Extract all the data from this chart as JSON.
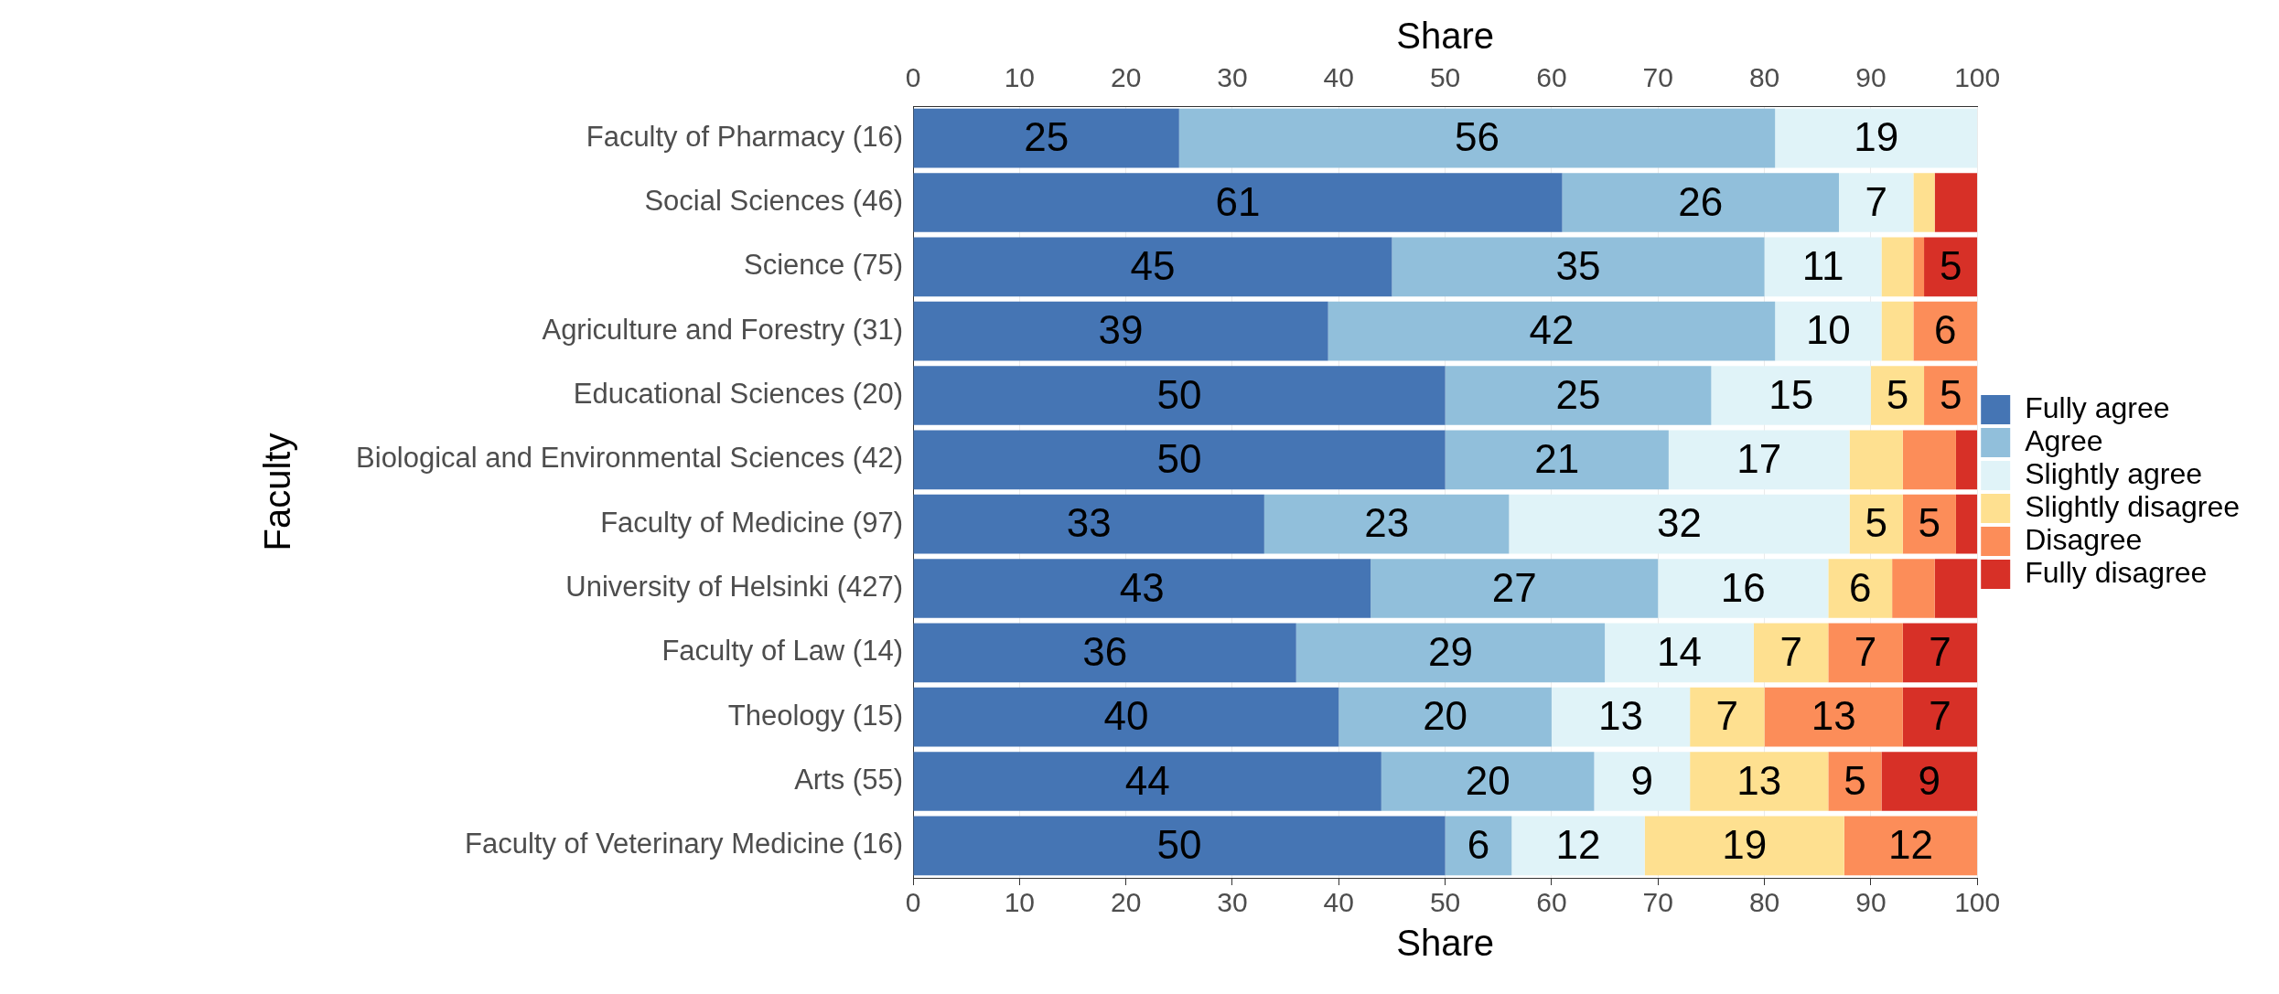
{
  "chart_data": {
    "type": "bar",
    "orientation": "horizontal",
    "stacked": true,
    "xlabel": "Share",
    "x2label": "Share",
    "ylabel": "Faculty",
    "categories": [
      "Faculty of Pharmacy (16)",
      "Social Sciences (46)",
      "Science (75)",
      "Agriculture and Forestry (31)",
      "Educational Sciences (20)",
      "Biological and Environmental Sciences (42)",
      "Faculty of Medicine (97)",
      "University of Helsinki (427)",
      "Faculty of Law (14)",
      "Theology (15)",
      "Arts (55)",
      "Faculty of Veterinary Medicine (16)"
    ],
    "xlim": [
      0,
      100
    ],
    "xticks": [
      0,
      10,
      20,
      30,
      40,
      50,
      60,
      70,
      80,
      90,
      100
    ],
    "x2lim": [
      0,
      100
    ],
    "x2ticks": [
      0,
      10,
      20,
      30,
      40,
      50,
      60,
      70,
      80,
      90,
      100
    ],
    "grid": "x",
    "legend": "right",
    "series": [
      {
        "name": "Fully agree",
        "color": "#4575b4",
        "values": [
          25,
          61,
          45,
          39,
          50,
          50,
          33,
          43,
          36,
          40,
          44,
          50
        ],
        "value_labels": [
          "25",
          "61",
          "45",
          "39",
          "50",
          "50",
          "33",
          "43",
          "36",
          "40",
          "44",
          "50"
        ]
      },
      {
        "name": "Agree",
        "color": "#91bfdb",
        "values": [
          56,
          26,
          35,
          42,
          25,
          21,
          23,
          27,
          29,
          20,
          20,
          6.25
        ],
        "value_labels": [
          "56",
          "26",
          "35",
          "42",
          "25",
          "21",
          "23",
          "27",
          "29",
          "20",
          "20",
          "6"
        ]
      },
      {
        "name": "Slightly agree",
        "color": "#e0f3f8",
        "values": [
          19,
          7,
          11,
          10,
          15,
          17,
          32,
          16,
          14,
          13,
          9,
          12.5
        ],
        "value_labels": [
          "19",
          "7",
          "11",
          "10",
          "15",
          "17",
          "32",
          "16",
          "14",
          "13",
          "9",
          "12"
        ]
      },
      {
        "name": "Slightly disagree",
        "color": "#fee090",
        "values": [
          0,
          2,
          3,
          3,
          5,
          5,
          5,
          6,
          7,
          7,
          13,
          18.75
        ],
        "value_labels": [
          null,
          null,
          null,
          null,
          "5",
          null,
          "5",
          "6",
          "7",
          "7",
          "13",
          "19"
        ]
      },
      {
        "name": "Disagree",
        "color": "#fc8d59",
        "values": [
          0,
          0,
          1,
          6,
          5,
          5,
          5,
          4,
          7,
          13,
          5,
          12.5
        ],
        "value_labels": [
          null,
          null,
          null,
          "6",
          "5",
          null,
          "5",
          null,
          "7",
          "13",
          "5",
          "12"
        ]
      },
      {
        "name": "Fully disagree",
        "color": "#d73027",
        "values": [
          0,
          4,
          5,
          0,
          0,
          2,
          2,
          4,
          7,
          7,
          9,
          0
        ],
        "value_labels": [
          null,
          null,
          "5",
          null,
          null,
          null,
          null,
          null,
          "7",
          "7",
          "9",
          null
        ]
      }
    ]
  }
}
